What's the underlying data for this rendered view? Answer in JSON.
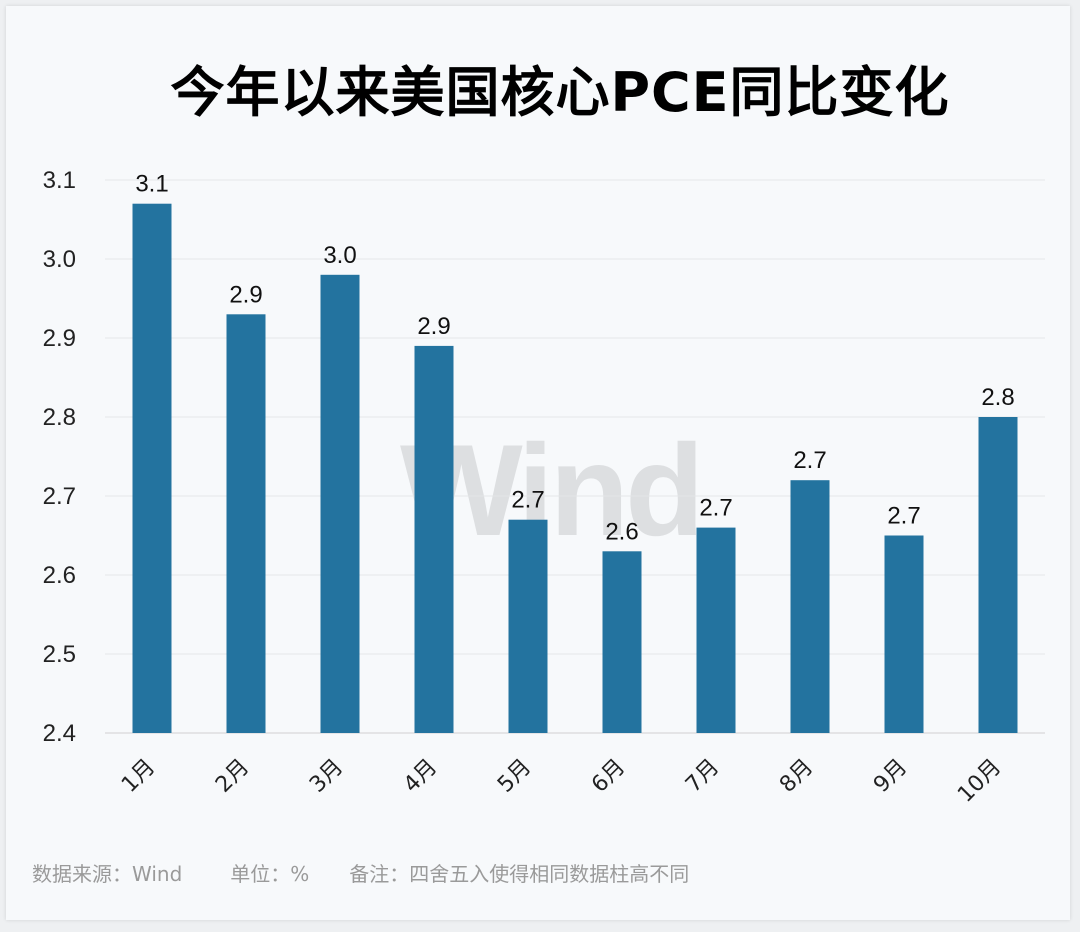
{
  "chart_data": {
    "type": "bar",
    "title": "今年以来美国核心PCE同比变化",
    "categories": [
      "1月",
      "2月",
      "3月",
      "4月",
      "5月",
      "6月",
      "7月",
      "8月",
      "9月",
      "10月"
    ],
    "values": [
      3.07,
      2.93,
      2.98,
      2.89,
      2.67,
      2.63,
      2.66,
      2.72,
      2.65,
      2.8
    ],
    "data_labels": [
      "3.1",
      "2.9",
      "3.0",
      "2.9",
      "2.7",
      "2.6",
      "2.7",
      "2.7",
      "2.7",
      "2.8"
    ],
    "ylim": [
      2.4,
      3.1
    ],
    "yticks": [
      "2.4",
      "2.5",
      "2.6",
      "2.7",
      "2.8",
      "2.9",
      "3.0",
      "3.1"
    ],
    "xlabel": "",
    "ylabel": "",
    "grid": true,
    "bar_color": "#23739f"
  },
  "watermark": "Wind",
  "footer": {
    "source": "数据来源：Wind",
    "unit": "单位：%",
    "note": "备注：四舍五入使得相同数据柱高不同"
  }
}
